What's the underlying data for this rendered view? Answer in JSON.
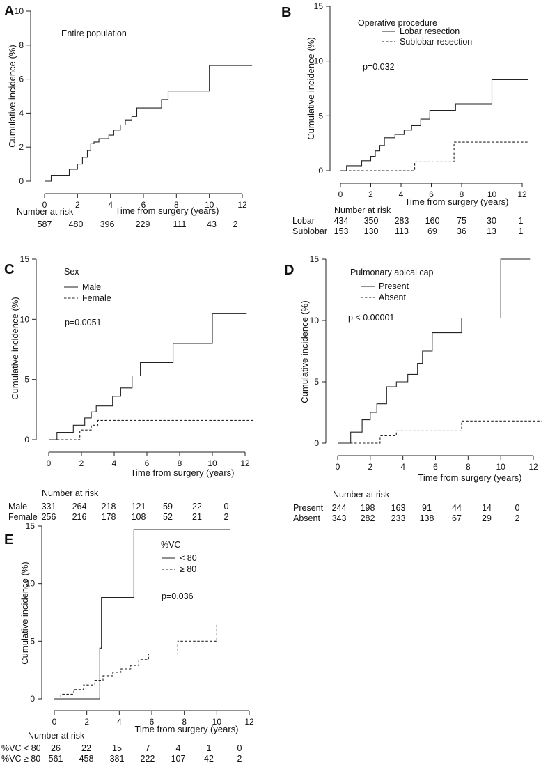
{
  "chart_data": [
    {
      "panel": "A",
      "type": "line",
      "subtitle": "Entire population",
      "xlabel": "Time from surgery (years)",
      "ylabel": "Cumulative incidence (%)",
      "xlim": [
        0,
        12
      ],
      "ylim": [
        0,
        10
      ],
      "xticks": [
        0,
        2,
        4,
        6,
        8,
        10,
        12
      ],
      "yticks": [
        0,
        2,
        4,
        6,
        8,
        10
      ],
      "legend_title": "",
      "pvalue": "",
      "series": [
        {
          "name": "Entire population",
          "style": "solid",
          "x": [
            0,
            0.4,
            1.5,
            2.0,
            2.3,
            2.6,
            2.8,
            3.0,
            3.3,
            3.9,
            4.2,
            4.6,
            4.9,
            5.3,
            5.6,
            7.1,
            7.5,
            10.0,
            12.6
          ],
          "y": [
            0,
            0.35,
            0.7,
            1.0,
            1.4,
            1.8,
            2.2,
            2.3,
            2.5,
            2.7,
            3.0,
            3.3,
            3.6,
            3.8,
            4.3,
            4.8,
            5.3,
            6.8,
            6.8
          ]
        }
      ],
      "risk_table": {
        "header": "Number at risk",
        "rows": [
          {
            "label": "",
            "values": [
              "587",
              "480",
              "396",
              "229",
              "111",
              "43",
              "2"
            ]
          }
        ]
      }
    },
    {
      "panel": "B",
      "type": "line",
      "xlabel": "Time from surgery (years)",
      "ylabel": "Cumulative incidence (%)",
      "xlim": [
        0,
        12
      ],
      "ylim": [
        0,
        15
      ],
      "xticks": [
        0,
        2,
        4,
        6,
        8,
        10,
        12
      ],
      "yticks": [
        0,
        5,
        10,
        15
      ],
      "legend_title": "Operative procedure",
      "pvalue": "p=0.032",
      "series": [
        {
          "name": "Lobar resection",
          "style": "solid",
          "x": [
            0,
            0.4,
            1.4,
            2.0,
            2.3,
            2.6,
            2.9,
            3.6,
            4.2,
            4.7,
            5.3,
            5.9,
            7.6,
            10.0,
            12.4
          ],
          "y": [
            0,
            0.45,
            0.9,
            1.3,
            1.8,
            2.3,
            3.0,
            3.3,
            3.7,
            4.1,
            4.7,
            5.5,
            6.1,
            8.3,
            8.3
          ]
        },
        {
          "name": "Sublobar resection",
          "style": "dashed",
          "x": [
            0,
            4.9,
            7.5,
            12.4
          ],
          "y": [
            0,
            0.8,
            2.6,
            2.6
          ]
        }
      ],
      "risk_table": {
        "header": "Number at risk",
        "rows": [
          {
            "label": "Lobar",
            "values": [
              "434",
              "350",
              "283",
              "160",
              "75",
              "30",
              "1"
            ]
          },
          {
            "label": "Sublobar",
            "values": [
              "153",
              "130",
              "113",
              "69",
              "36",
              "13",
              "1"
            ]
          }
        ]
      }
    },
    {
      "panel": "C",
      "type": "line",
      "xlabel": "Time from surgery (years)",
      "ylabel": "Cumulative incidence (%)",
      "xlim": [
        0,
        12
      ],
      "ylim": [
        0,
        15
      ],
      "xticks": [
        0,
        2,
        4,
        6,
        8,
        10,
        12
      ],
      "yticks": [
        0,
        5,
        10,
        15
      ],
      "legend_title": "Sex",
      "pvalue": "p=0.0051",
      "series": [
        {
          "name": "Male",
          "style": "solid",
          "x": [
            0,
            0.5,
            1.5,
            2.2,
            2.6,
            2.9,
            3.9,
            4.4,
            5.1,
            5.6,
            7.6,
            10.0,
            12.1
          ],
          "y": [
            0,
            0.6,
            1.2,
            1.8,
            2.3,
            2.8,
            3.6,
            4.3,
            5.3,
            6.4,
            8.0,
            10.5,
            10.5
          ]
        },
        {
          "name": "Female",
          "style": "dashed",
          "x": [
            0,
            1.9,
            2.6,
            3.0,
            12.5
          ],
          "y": [
            0,
            0.8,
            1.2,
            1.6,
            1.6
          ]
        }
      ],
      "risk_table": {
        "header": "Number at risk",
        "rows": [
          {
            "label": "Male",
            "values": [
              "331",
              "264",
              "218",
              "121",
              "59",
              "22",
              "0"
            ]
          },
          {
            "label": "Female",
            "values": [
              "256",
              "216",
              "178",
              "108",
              "52",
              "21",
              "2"
            ]
          }
        ]
      }
    },
    {
      "panel": "D",
      "type": "line",
      "xlabel": "Time from surgery (years)",
      "ylabel": "Cumulative incidence (%)",
      "xlim": [
        0,
        12
      ],
      "ylim": [
        0,
        15
      ],
      "xticks": [
        0,
        2,
        4,
        6,
        8,
        10,
        12
      ],
      "yticks": [
        0,
        5,
        10,
        15
      ],
      "legend_title": "Pulmonary apical cap",
      "pvalue": "p < 0.00001",
      "series": [
        {
          "name": "Present",
          "style": "solid",
          "x": [
            0,
            0.8,
            1.5,
            2.0,
            2.4,
            3.0,
            3.6,
            4.3,
            4.9,
            5.2,
            5.8,
            7.6,
            10.0,
            11.8
          ],
          "y": [
            0,
            0.9,
            1.9,
            2.5,
            3.2,
            4.6,
            5.0,
            5.6,
            6.5,
            7.5,
            9.0,
            10.2,
            15.0,
            15.0
          ]
        },
        {
          "name": "Absent",
          "style": "dashed",
          "x": [
            0,
            2.6,
            3.6,
            7.6,
            12.5
          ],
          "y": [
            0,
            0.6,
            1.0,
            1.8,
            1.8
          ]
        }
      ],
      "risk_table": {
        "header": "Number at risk",
        "rows": [
          {
            "label": "Present",
            "values": [
              "244",
              "198",
              "163",
              "91",
              "44",
              "14",
              "0"
            ]
          },
          {
            "label": "Absent",
            "values": [
              "343",
              "282",
              "233",
              "138",
              "67",
              "29",
              "2"
            ]
          }
        ]
      }
    },
    {
      "panel": "E",
      "type": "line",
      "xlabel": "Time from surgery (years)",
      "ylabel": "Cumulative incidence (%)",
      "xlim": [
        0,
        12
      ],
      "ylim": [
        0,
        15
      ],
      "xticks": [
        0,
        2,
        4,
        6,
        8,
        10,
        12
      ],
      "yticks": [
        0,
        5,
        10,
        15
      ],
      "legend_title": "%VC",
      "pvalue": "p=0.036",
      "series": [
        {
          "name": "< 80",
          "style": "solid",
          "x": [
            0,
            2.8,
            2.9,
            4.9,
            10.8
          ],
          "y": [
            0,
            4.4,
            8.8,
            14.7,
            14.7
          ]
        },
        {
          "name": "≥ 80",
          "style": "dashed",
          "x": [
            0,
            0.4,
            1.2,
            1.8,
            2.5,
            3.0,
            3.6,
            4.1,
            4.7,
            5.2,
            5.8,
            7.6,
            10.0,
            12.5
          ],
          "y": [
            0,
            0.4,
            0.8,
            1.2,
            1.6,
            2.0,
            2.3,
            2.6,
            2.9,
            3.4,
            3.9,
            5.0,
            6.5,
            6.5
          ]
        }
      ],
      "risk_table": {
        "header": "Number at risk",
        "rows": [
          {
            "label": "%VC < 80",
            "values": [
              "26",
              "22",
              "15",
              "7",
              "4",
              "1",
              "0"
            ]
          },
          {
            "label": "%VC ≥ 80",
            "values": [
              "561",
              "458",
              "381",
              "222",
              "107",
              "42",
              "2"
            ]
          }
        ]
      }
    }
  ]
}
